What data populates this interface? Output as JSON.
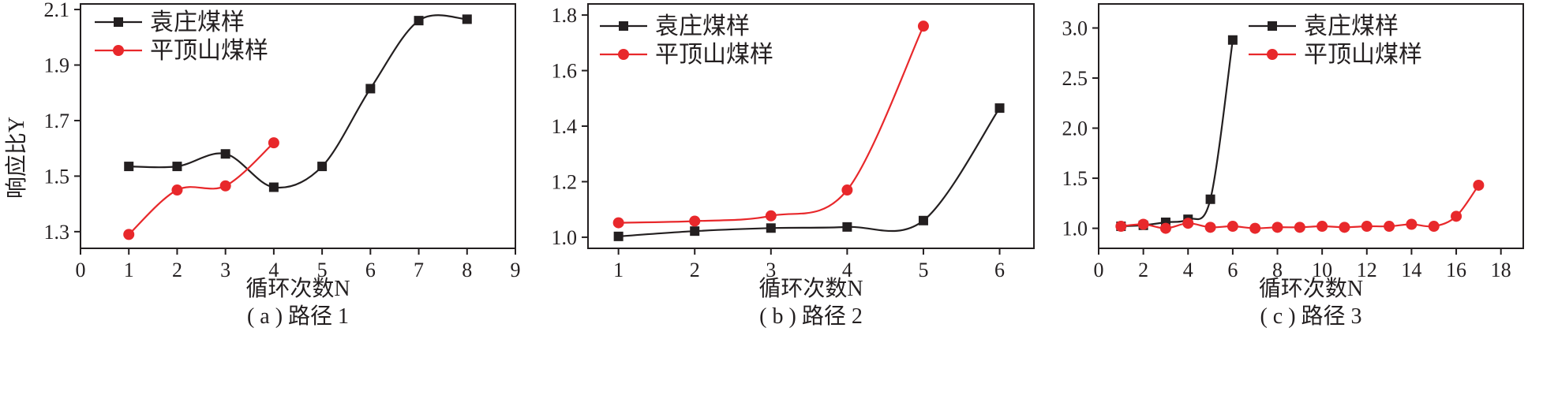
{
  "figure": {
    "shared_ylabel": "响应比Y",
    "colors": {
      "yuanzhuang": "#231f20",
      "pingdingshan": "#e8282b",
      "axis": "#231f20"
    }
  },
  "chart_data": [
    {
      "type": "line",
      "caption": "( a ) 路径 1",
      "xlabel": "循环次数N",
      "ylabel": "响应比Y",
      "xlim": [
        0,
        9
      ],
      "ylim": [
        1.24,
        2.12
      ],
      "xticks": [
        0,
        1,
        2,
        3,
        4,
        5,
        6,
        7,
        8,
        9
      ],
      "yticks": [
        1.3,
        1.5,
        1.7,
        1.9,
        2.1
      ],
      "ytick_labels": [
        "1.3",
        "1.5",
        "1.7",
        "1.9",
        "2.1"
      ],
      "legend_position": "top-left",
      "series": [
        {
          "name": "袁庄煤样",
          "color": "#231f20",
          "marker": "square",
          "x": [
            1,
            2,
            3,
            4,
            5,
            6,
            7,
            8
          ],
          "y": [
            1.535,
            1.535,
            1.58,
            1.46,
            1.535,
            1.815,
            2.06,
            2.065
          ]
        },
        {
          "name": "平顶山煤样",
          "color": "#e8282b",
          "marker": "circle",
          "x": [
            1,
            2,
            3,
            4
          ],
          "y": [
            1.29,
            1.45,
            1.465,
            1.62
          ]
        }
      ]
    },
    {
      "type": "line",
      "caption": "( b ) 路径 2",
      "xlabel": "循环次数N",
      "ylabel": "",
      "xlim": [
        0.6,
        6.45
      ],
      "ylim": [
        0.96,
        1.84
      ],
      "xticks": [
        1,
        2,
        3,
        4,
        5,
        6
      ],
      "yticks": [
        1.0,
        1.2,
        1.4,
        1.6,
        1.8
      ],
      "ytick_labels": [
        "1.0",
        "1.2",
        "1.4",
        "1.6",
        "1.8"
      ],
      "legend_position": "top-left",
      "series": [
        {
          "name": "袁庄煤样",
          "color": "#231f20",
          "marker": "square",
          "x": [
            1,
            2,
            3,
            4,
            5,
            6
          ],
          "y": [
            1.003,
            1.022,
            1.033,
            1.037,
            1.06,
            1.465
          ]
        },
        {
          "name": "平顶山煤样",
          "color": "#e8282b",
          "marker": "circle",
          "x": [
            1,
            2,
            3,
            4,
            5
          ],
          "y": [
            1.052,
            1.058,
            1.077,
            1.17,
            1.76
          ]
        }
      ]
    },
    {
      "type": "line",
      "caption": "( c ) 路径 3",
      "xlabel": "循环次数N",
      "ylabel": "",
      "xlim": [
        0,
        19
      ],
      "ylim": [
        0.8,
        3.24
      ],
      "xticks": [
        0,
        2,
        4,
        6,
        8,
        10,
        12,
        14,
        16,
        18
      ],
      "yticks": [
        1.0,
        1.5,
        2.0,
        2.5,
        3.0
      ],
      "ytick_labels": [
        "1.0",
        "1.5",
        "2.0",
        "2.5",
        "3.0"
      ],
      "legend_position": "top-center",
      "series": [
        {
          "name": "袁庄煤样",
          "color": "#231f20",
          "marker": "square",
          "x": [
            1,
            2,
            3,
            4,
            5,
            6
          ],
          "y": [
            1.02,
            1.03,
            1.06,
            1.09,
            1.29,
            2.88
          ]
        },
        {
          "name": "平顶山煤样",
          "color": "#e8282b",
          "marker": "circle",
          "x": [
            1,
            2,
            3,
            4,
            5,
            6,
            7,
            8,
            9,
            10,
            11,
            12,
            13,
            14,
            15,
            16,
            17
          ],
          "y": [
            1.02,
            1.04,
            1.0,
            1.05,
            1.01,
            1.02,
            1.0,
            1.01,
            1.01,
            1.02,
            1.01,
            1.02,
            1.02,
            1.04,
            1.02,
            1.12,
            1.43
          ]
        }
      ]
    }
  ]
}
